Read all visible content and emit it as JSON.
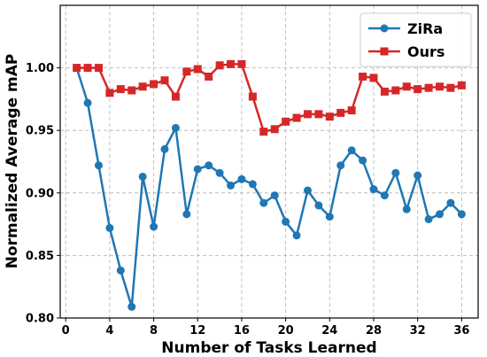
{
  "chart_data": {
    "type": "line",
    "xlabel": "Number of Tasks Learned",
    "ylabel": "Normalized Average mAP",
    "xlim": [
      -0.5,
      37.5
    ],
    "ylim": [
      0.8,
      1.05
    ],
    "xticks": [
      0,
      4,
      8,
      12,
      16,
      20,
      24,
      28,
      32,
      36
    ],
    "yticks": [
      0.8,
      0.85,
      0.9,
      0.95,
      1.0
    ],
    "xtick_labels": [
      "0",
      "4",
      "8",
      "12",
      "16",
      "20",
      "24",
      "28",
      "32",
      "36"
    ],
    "ytick_labels": [
      "0.80",
      "0.85",
      "0.90",
      "0.95",
      "1.00"
    ],
    "grid": true,
    "legend_position": "upper right",
    "x": [
      1,
      2,
      3,
      4,
      5,
      6,
      7,
      8,
      9,
      10,
      11,
      12,
      13,
      14,
      15,
      16,
      17,
      18,
      19,
      20,
      21,
      22,
      23,
      24,
      25,
      26,
      27,
      28,
      29,
      30,
      31,
      32,
      33,
      34,
      35,
      36
    ],
    "series": [
      {
        "name": "ZiRa",
        "color": "#1f77b4",
        "marker": "circle",
        "values": [
          1.0,
          0.972,
          0.922,
          0.872,
          0.838,
          0.809,
          0.913,
          0.873,
          0.935,
          0.952,
          0.883,
          0.919,
          0.922,
          0.916,
          0.906,
          0.911,
          0.907,
          0.892,
          0.898,
          0.877,
          0.866,
          0.902,
          0.89,
          0.881,
          0.922,
          0.934,
          0.926,
          0.903,
          0.898,
          0.916,
          0.887,
          0.914,
          0.879,
          0.883,
          0.892,
          0.883
        ]
      },
      {
        "name": "Ours",
        "color": "#d62728",
        "marker": "square",
        "values": [
          1.0,
          1.0,
          1.0,
          0.98,
          0.983,
          0.982,
          0.985,
          0.987,
          0.99,
          0.977,
          0.997,
          0.999,
          0.993,
          1.002,
          1.003,
          1.003,
          0.977,
          0.949,
          0.951,
          0.957,
          0.96,
          0.963,
          0.963,
          0.961,
          0.964,
          0.966,
          0.993,
          0.992,
          0.981,
          0.982,
          0.985,
          0.983,
          0.984,
          0.985,
          0.984,
          0.986
        ]
      }
    ]
  }
}
